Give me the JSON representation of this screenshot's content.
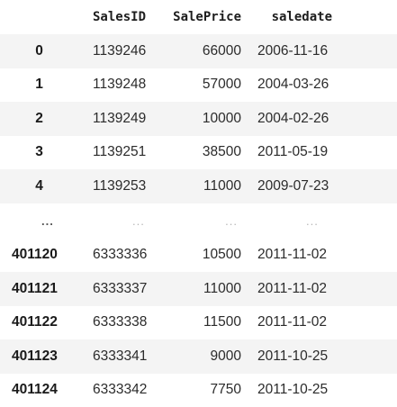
{
  "table": {
    "columns": [
      "SalesID",
      "SalePrice",
      "saledate"
    ],
    "head_rows": [
      {
        "index": "0",
        "SalesID": "1139246",
        "SalePrice": "66000",
        "saledate": "2006-11-16"
      },
      {
        "index": "1",
        "SalesID": "1139248",
        "SalePrice": "57000",
        "saledate": "2004-03-26"
      },
      {
        "index": "2",
        "SalesID": "1139249",
        "SalePrice": "10000",
        "saledate": "2004-02-26"
      },
      {
        "index": "3",
        "SalesID": "1139251",
        "SalePrice": "38500",
        "saledate": "2011-05-19"
      },
      {
        "index": "4",
        "SalesID": "1139253",
        "SalePrice": "11000",
        "saledate": "2009-07-23"
      }
    ],
    "ellipsis": {
      "index": "...",
      "SalesID": "...",
      "SalePrice": "...",
      "saledate": "..."
    },
    "tail_rows": [
      {
        "index": "401120",
        "SalesID": "6333336",
        "SalePrice": "10500",
        "saledate": "2011-11-02"
      },
      {
        "index": "401121",
        "SalesID": "6333337",
        "SalePrice": "11000",
        "saledate": "2011-11-02"
      },
      {
        "index": "401122",
        "SalesID": "6333338",
        "SalePrice": "11500",
        "saledate": "2011-11-02"
      },
      {
        "index": "401123",
        "SalesID": "6333341",
        "SalePrice": "9000",
        "saledate": "2011-10-25"
      },
      {
        "index": "401124",
        "SalesID": "6333342",
        "SalePrice": "7750",
        "saledate": "2011-10-25"
      }
    ]
  }
}
